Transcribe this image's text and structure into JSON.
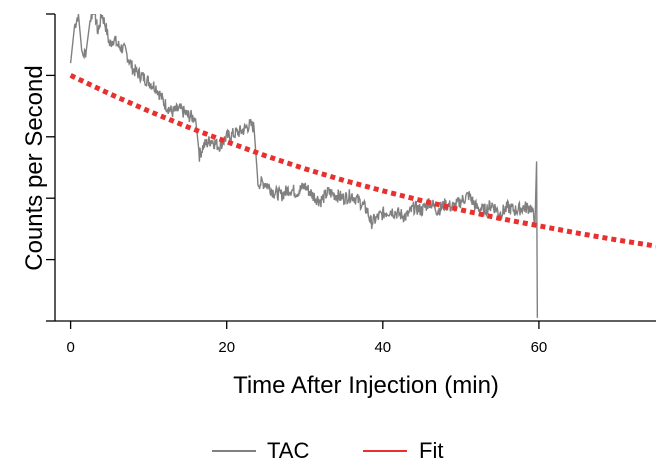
{
  "chart_data": {
    "type": "line",
    "xlabel": "Time After Injection (min)",
    "ylabel": "Counts per Second",
    "xlim": [
      -2,
      75
    ],
    "ylim": [
      0,
      5
    ],
    "x_ticks": [
      0,
      20,
      40,
      60
    ],
    "x_tick_labels": [
      "0",
      "20",
      "40",
      "60"
    ],
    "y_ticks": [
      0,
      1,
      2,
      3,
      4,
      5
    ],
    "y_tick_labels_visible": false,
    "grid": false,
    "legend": "bottom-center",
    "series": [
      {
        "name": "TAC",
        "color": "#808080",
        "style": "noisy-line",
        "x": [
          0,
          0.5,
          1,
          1.5,
          2,
          2.5,
          3,
          3.5,
          4,
          4.5,
          5,
          5.5,
          6,
          7,
          8,
          9,
          10,
          11,
          12,
          13,
          14,
          15,
          16,
          16.5,
          17,
          18,
          19,
          20,
          21,
          22,
          23,
          23.5,
          24,
          25,
          26,
          27,
          28,
          29,
          30,
          31,
          32,
          33,
          34,
          35,
          36,
          37,
          38,
          38.5,
          39,
          40,
          41,
          42,
          43,
          44,
          45,
          46,
          47,
          48,
          49,
          50,
          51,
          52,
          53,
          54,
          55,
          56,
          57,
          58,
          59,
          59.5,
          59.7,
          59.8
        ],
        "y": [
          4.2,
          4.8,
          5.0,
          4.3,
          4.4,
          4.9,
          5.1,
          4.7,
          5.0,
          4.8,
          4.5,
          4.6,
          4.5,
          4.4,
          4.1,
          4.0,
          3.9,
          3.8,
          3.55,
          3.4,
          3.45,
          3.35,
          3.3,
          2.7,
          2.85,
          2.95,
          2.85,
          3.0,
          3.05,
          3.1,
          3.2,
          3.15,
          2.25,
          2.25,
          2.1,
          2.05,
          2.15,
          2.1,
          2.2,
          2.05,
          1.95,
          2.1,
          2.05,
          2.0,
          2.05,
          1.95,
          1.8,
          1.6,
          1.65,
          1.75,
          1.8,
          1.75,
          1.7,
          1.85,
          1.8,
          1.95,
          1.8,
          1.9,
          1.85,
          1.95,
          2.05,
          1.85,
          1.8,
          1.9,
          1.75,
          1.85,
          1.8,
          1.85,
          1.85,
          1.6,
          2.6,
          0.05
        ]
      },
      {
        "name": "Fit",
        "color": "#e8312f",
        "style": "dotted-thick",
        "x": [
          0,
          5,
          10,
          15,
          20,
          25,
          30,
          35,
          40,
          45,
          50,
          55,
          60,
          65,
          70,
          75
        ],
        "y": [
          4.0,
          3.7,
          3.42,
          3.16,
          2.92,
          2.69,
          2.48,
          2.29,
          2.12,
          1.96,
          1.81,
          1.67,
          1.55,
          1.43,
          1.32,
          1.22
        ]
      }
    ]
  }
}
